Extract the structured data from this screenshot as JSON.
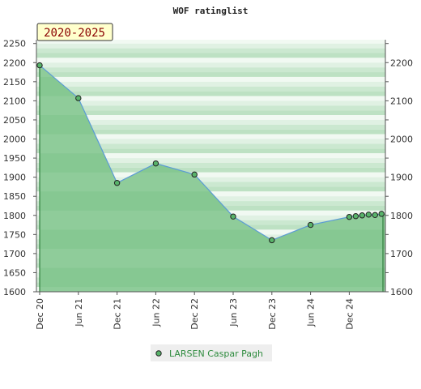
{
  "chart_data": {
    "type": "area",
    "title": "WOF ratinglist",
    "period_label": "2020-2025",
    "xlabel": "",
    "ylabel": "",
    "x_ticks": [
      "Dec 20",
      "Jun 21",
      "Dec 21",
      "Jun 22",
      "Dec 22",
      "Jun 23",
      "Dec 23",
      "Jun 24",
      "Dec 24"
    ],
    "y_ticks_left": [
      1600,
      1650,
      1700,
      1750,
      1800,
      1850,
      1900,
      1950,
      2000,
      2050,
      2100,
      2150,
      2200,
      2250
    ],
    "y_ticks_right": [
      1600,
      1700,
      1800,
      1900,
      2000,
      2100,
      2200
    ],
    "ylim": [
      1600,
      2260
    ],
    "grid": true,
    "legend_position": "bottom-center",
    "series": [
      {
        "name": "LARSEN Caspar Pagh",
        "color": "#58b36a",
        "line_color": "#5b9bd5",
        "x": [
          "2020-12",
          "2021-06",
          "2021-12",
          "2022-06",
          "2022-12",
          "2023-06",
          "2023-12",
          "2024-06",
          "2024-12",
          "2025-01",
          "2025-02",
          "2025-03",
          "2025-04",
          "2025-05"
        ],
        "values": [
          2193,
          2107,
          1885,
          1936,
          1907,
          1797,
          1735,
          1775,
          1796,
          1798,
          1800,
          1802,
          1801,
          1804
        ]
      }
    ]
  }
}
